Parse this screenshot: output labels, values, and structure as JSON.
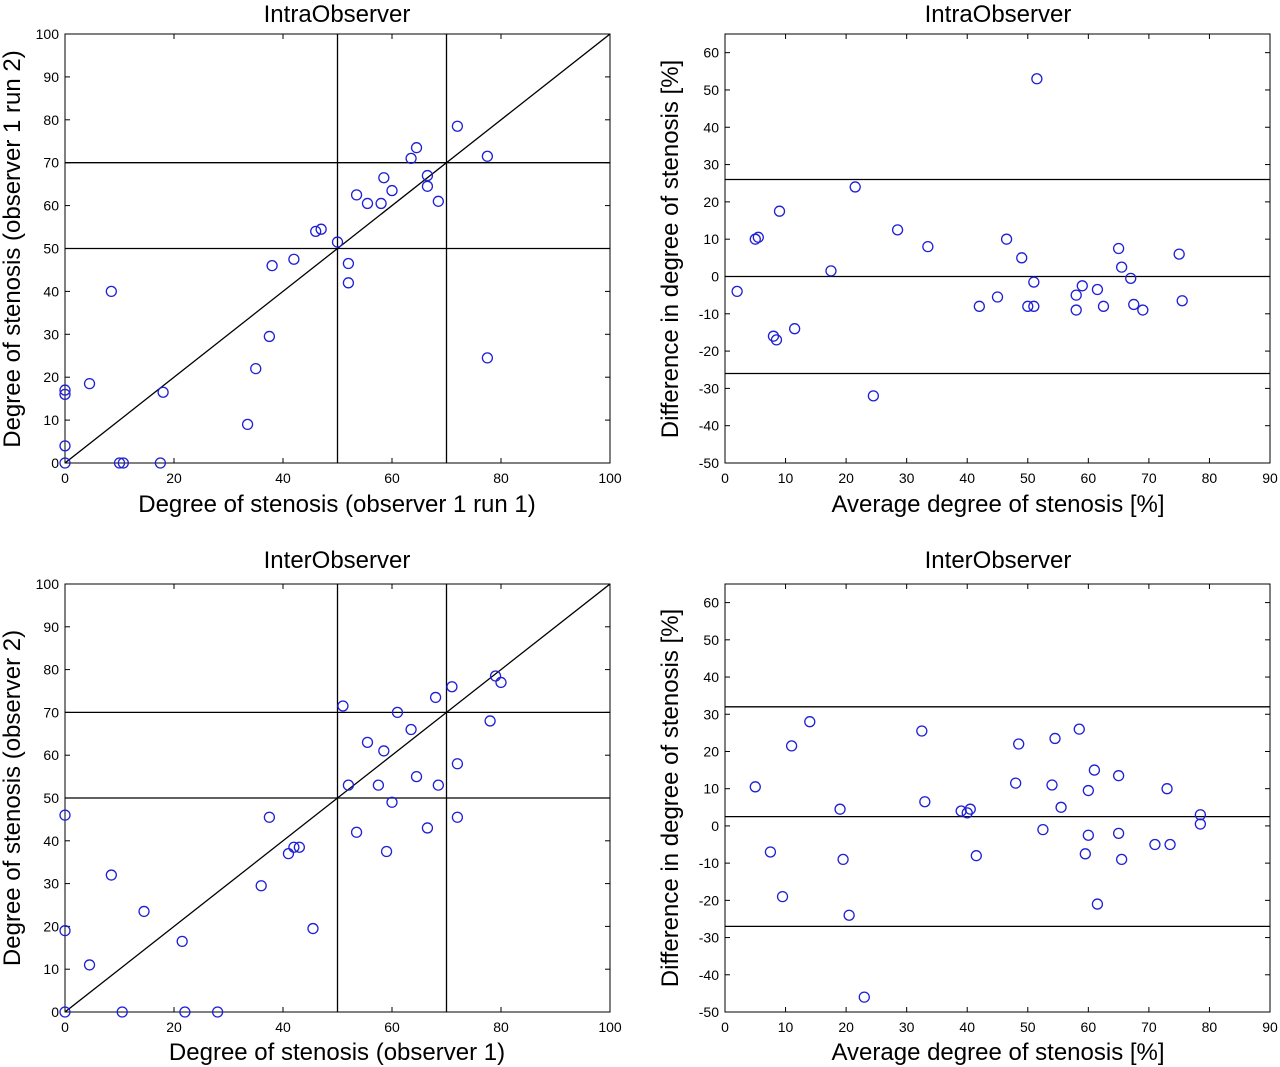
{
  "chart_data": [
    {
      "type": "scatter",
      "title": "IntraObserver",
      "xlabel": "Degree of stenosis (observer 1 run 1)",
      "ylabel": "Degree of stenosis (observer 1 run 2)",
      "xlim": [
        0,
        100
      ],
      "ylim": [
        0,
        100
      ],
      "xticks": [
        0,
        20,
        40,
        60,
        80,
        100
      ],
      "yticks": [
        0,
        10,
        20,
        30,
        40,
        50,
        60,
        70,
        80,
        90,
        100
      ],
      "grid": false,
      "reference_lines": {
        "vertical": [
          50,
          70
        ],
        "horizontal": [
          50,
          70
        ],
        "identity": true
      },
      "point_color": "#1f1fd6",
      "points": [
        [
          0,
          0
        ],
        [
          0,
          4
        ],
        [
          0,
          16
        ],
        [
          0,
          17
        ],
        [
          4.5,
          18.5
        ],
        [
          8.5,
          40
        ],
        [
          10,
          0
        ],
        [
          10.7,
          0
        ],
        [
          17.5,
          0
        ],
        [
          18,
          16.5
        ],
        [
          33.5,
          9
        ],
        [
          35,
          22
        ],
        [
          37.5,
          29.5
        ],
        [
          38,
          46
        ],
        [
          42,
          47.5
        ],
        [
          46,
          54
        ],
        [
          47,
          54.5
        ],
        [
          50,
          51.5
        ],
        [
          52,
          42
        ],
        [
          52,
          46.5
        ],
        [
          53.5,
          62.5
        ],
        [
          55.5,
          60.5
        ],
        [
          58,
          60.5
        ],
        [
          58.5,
          66.5
        ],
        [
          60,
          63.5
        ],
        [
          63.5,
          71
        ],
        [
          64.5,
          73.5
        ],
        [
          66.5,
          64.5
        ],
        [
          66.5,
          67
        ],
        [
          68.5,
          61
        ],
        [
          72,
          78.5
        ],
        [
          77.5,
          71.5
        ],
        [
          77.5,
          24.5
        ]
      ]
    },
    {
      "type": "scatter",
      "title": "IntraObserver",
      "xlabel": "Average degree of stenosis [%]",
      "ylabel": "Difference in degree of stenosis [%]",
      "xlim": [
        0,
        90
      ],
      "ylim": [
        -50,
        65
      ],
      "xticks": [
        0,
        10,
        20,
        30,
        40,
        50,
        60,
        70,
        80,
        90
      ],
      "yticks": [
        -50,
        -40,
        -30,
        -20,
        -10,
        0,
        10,
        20,
        30,
        40,
        50,
        60
      ],
      "grid": false,
      "reference_lines": {
        "horizontal": [
          26,
          0,
          -26
        ]
      },
      "point_color": "#1f1fd6",
      "points": [
        [
          2,
          -4
        ],
        [
          5,
          10
        ],
        [
          5.5,
          10.5
        ],
        [
          8,
          -16
        ],
        [
          8.5,
          -17
        ],
        [
          9,
          17.5
        ],
        [
          11.5,
          -14
        ],
        [
          17.5,
          1.5
        ],
        [
          21.5,
          24
        ],
        [
          24.5,
          -32
        ],
        [
          28.5,
          12.5
        ],
        [
          33.5,
          8
        ],
        [
          42,
          -8
        ],
        [
          45,
          -5.5
        ],
        [
          46.5,
          10
        ],
        [
          49,
          5
        ],
        [
          50,
          -8
        ],
        [
          51,
          -8
        ],
        [
          51,
          -1.5
        ],
        [
          51.5,
          53
        ],
        [
          58,
          -5
        ],
        [
          58,
          -9
        ],
        [
          59,
          -2.5
        ],
        [
          61.5,
          -3.5
        ],
        [
          62.5,
          -8
        ],
        [
          65,
          7.5
        ],
        [
          65.5,
          2.5
        ],
        [
          67,
          -0.5
        ],
        [
          67.5,
          -7.5
        ],
        [
          69,
          -9
        ],
        [
          75,
          6
        ],
        [
          75.5,
          -6.5
        ]
      ]
    },
    {
      "type": "scatter",
      "title": "InterObserver",
      "xlabel": "Degree of stenosis (observer 1)",
      "ylabel": "Degree of stenosis (observer 2)",
      "xlim": [
        0,
        100
      ],
      "ylim": [
        0,
        100
      ],
      "xticks": [
        0,
        20,
        40,
        60,
        80,
        100
      ],
      "yticks": [
        0,
        10,
        20,
        30,
        40,
        50,
        60,
        70,
        80,
        90,
        100
      ],
      "grid": false,
      "reference_lines": {
        "vertical": [
          50,
          70
        ],
        "horizontal": [
          50,
          70
        ],
        "identity": true
      },
      "point_color": "#1f1fd6",
      "points": [
        [
          0,
          0
        ],
        [
          0,
          19
        ],
        [
          0,
          46
        ],
        [
          4.5,
          11
        ],
        [
          8.5,
          32
        ],
        [
          10.5,
          0
        ],
        [
          14.5,
          23.5
        ],
        [
          21.5,
          16.5
        ],
        [
          22,
          0
        ],
        [
          28,
          0
        ],
        [
          36,
          29.5
        ],
        [
          37.5,
          45.5
        ],
        [
          41,
          37
        ],
        [
          42,
          38.5
        ],
        [
          43,
          38.5
        ],
        [
          45.5,
          19.5
        ],
        [
          51,
          71.5
        ],
        [
          52,
          53
        ],
        [
          53.5,
          42
        ],
        [
          55.5,
          63
        ],
        [
          57.5,
          53
        ],
        [
          58.5,
          61
        ],
        [
          59,
          37.5
        ],
        [
          60,
          49
        ],
        [
          61,
          70
        ],
        [
          63.5,
          66
        ],
        [
          64.5,
          55
        ],
        [
          66.5,
          43
        ],
        [
          68,
          73.5
        ],
        [
          68.5,
          53
        ],
        [
          71,
          76
        ],
        [
          72,
          58
        ],
        [
          72,
          45.5
        ],
        [
          78,
          68
        ],
        [
          79,
          78.5
        ],
        [
          80,
          77
        ]
      ]
    },
    {
      "type": "scatter",
      "title": "InterObserver",
      "xlabel": "Average degree of stenosis [%]",
      "ylabel": "Difference in degree of stenosis [%]",
      "xlim": [
        0,
        90
      ],
      "ylim": [
        -50,
        65
      ],
      "xticks": [
        0,
        10,
        20,
        30,
        40,
        50,
        60,
        70,
        80,
        90
      ],
      "yticks": [
        -50,
        -40,
        -30,
        -20,
        -10,
        0,
        10,
        20,
        30,
        40,
        50,
        60
      ],
      "grid": false,
      "reference_lines": {
        "horizontal": [
          32,
          2.5,
          -27
        ]
      },
      "point_color": "#1f1fd6",
      "points": [
        [
          5,
          10.5
        ],
        [
          7.5,
          -7
        ],
        [
          9.5,
          -19
        ],
        [
          11,
          21.5
        ],
        [
          14,
          28
        ],
        [
          19,
          4.5
        ],
        [
          19.5,
          -9
        ],
        [
          20.5,
          -24
        ],
        [
          23,
          -46
        ],
        [
          32.5,
          25.5
        ],
        [
          33,
          6.5
        ],
        [
          39,
          4
        ],
        [
          40,
          3.5
        ],
        [
          40.5,
          4.5
        ],
        [
          41.5,
          -8
        ],
        [
          48,
          11.5
        ],
        [
          48.5,
          22
        ],
        [
          52.5,
          -1
        ],
        [
          54,
          11
        ],
        [
          54.5,
          23.5
        ],
        [
          55.5,
          5
        ],
        [
          58.5,
          26
        ],
        [
          59.5,
          -7.5
        ],
        [
          60,
          9.5
        ],
        [
          60,
          -2.5
        ],
        [
          61,
          15
        ],
        [
          61.5,
          -21
        ],
        [
          65,
          13.5
        ],
        [
          65,
          -2
        ],
        [
          65.5,
          -9
        ],
        [
          71,
          -5
        ],
        [
          73,
          10
        ],
        [
          73.5,
          -5
        ],
        [
          78.5,
          3
        ],
        [
          78.5,
          0.5
        ]
      ]
    }
  ]
}
